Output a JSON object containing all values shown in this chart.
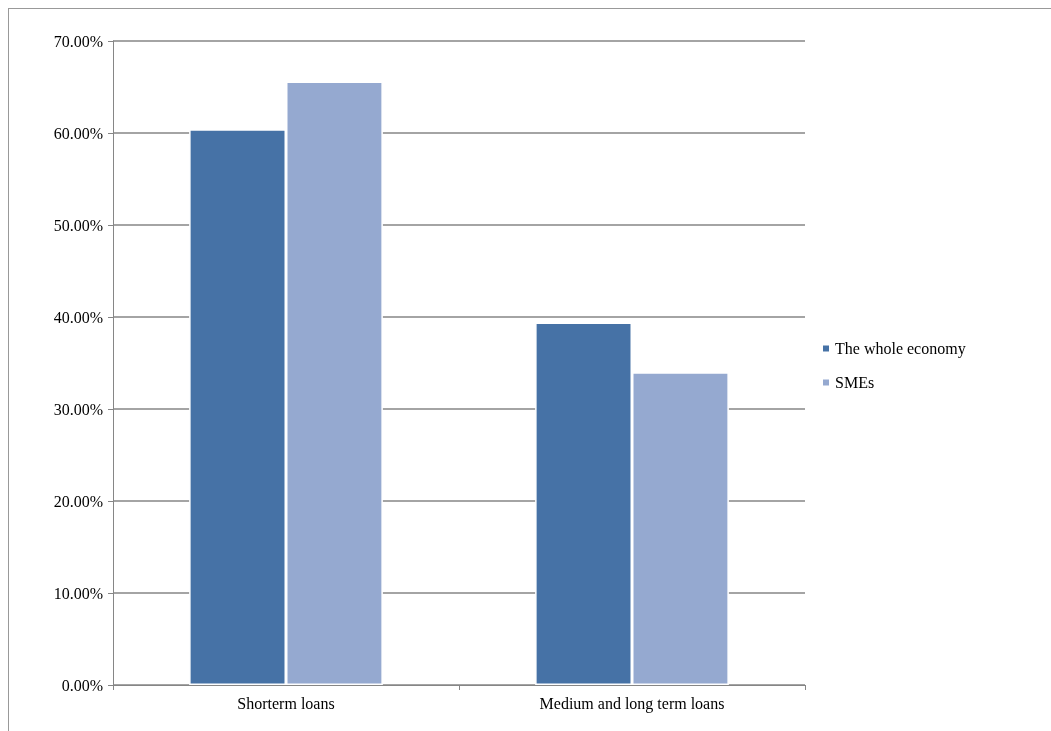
{
  "chart_data": {
    "type": "bar",
    "categories": [
      "Shorterm loans",
      "Medium and long term loans"
    ],
    "series": [
      {
        "name": "The whole economy",
        "color": "#4672a6",
        "values": [
          60.4,
          39.4
        ]
      },
      {
        "name": "SMEs",
        "color": "#95a9d0",
        "values": [
          65.6,
          34.0
        ]
      }
    ],
    "ylim": [
      0,
      70
    ],
    "yticks": [
      {
        "value": 0,
        "label": "0.00%"
      },
      {
        "value": 10,
        "label": "10.00%"
      },
      {
        "value": 20,
        "label": "20.00%"
      },
      {
        "value": 30,
        "label": "30.00%"
      },
      {
        "value": 40,
        "label": "40.00%"
      },
      {
        "value": 50,
        "label": "50.00%"
      },
      {
        "value": 60,
        "label": "60.00%"
      },
      {
        "value": 70,
        "label": "70.00%"
      }
    ],
    "grid": "y",
    "legend": "right"
  }
}
